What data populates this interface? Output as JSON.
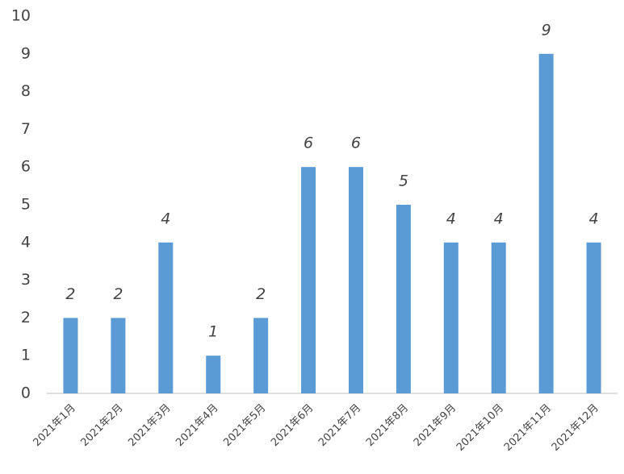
{
  "chart_data": {
    "type": "bar",
    "categories": [
      "2021年1月",
      "2021年2月",
      "2021年3月",
      "2021年4月",
      "2021年5月",
      "2021年6月",
      "2021年7月",
      "2021年8月",
      "2021年9月",
      "2021年10月",
      "2021年11月",
      "2021年12月"
    ],
    "values": [
      2,
      2,
      4,
      1,
      2,
      6,
      6,
      5,
      4,
      4,
      9,
      4
    ],
    "color": "#5b9bd5",
    "ylim": [
      0,
      10
    ],
    "yticks": [
      0,
      1,
      2,
      3,
      4,
      5,
      6,
      7,
      8,
      9,
      10
    ],
    "grid": false
  }
}
